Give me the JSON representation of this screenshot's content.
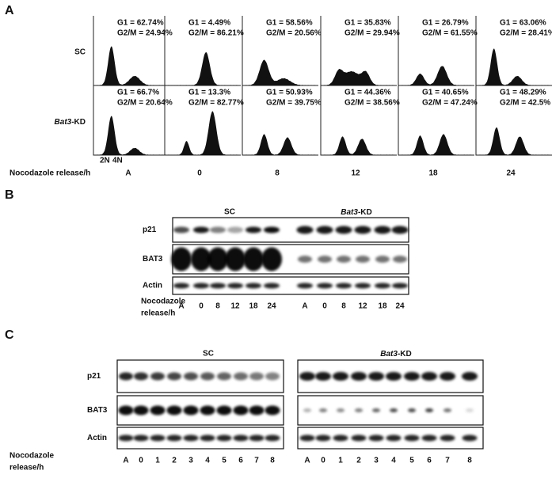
{
  "panel_a": {
    "label": "A",
    "rows": [
      {
        "name": "SC",
        "stats": [
          [
            "G1 = 62.74%",
            "G2/M = 24.94%"
          ],
          [
            "G1 = 4.49%",
            "G2/M = 86.21%"
          ],
          [
            "G1 = 58.56%",
            "G2/M = 20.56%"
          ],
          [
            "G1 = 35.83%",
            "G2/M = 29.94%"
          ],
          [
            "G1 = 26.79%",
            "G2/M = 61.55%"
          ],
          [
            "G1 = 63.06%",
            "G2/M = 28.41%"
          ]
        ]
      },
      {
        "name_italic": "Bat3",
        "name_suffix": "-KD",
        "stats": [
          [
            "G1 = 66.7%",
            "G2/M = 20.64%"
          ],
          [
            "G1 = 13.3%",
            "G2/M = 82.77%"
          ],
          [
            "G1 = 50.93%",
            "G2/M = 39.75%"
          ],
          [
            "G1 = 44.36%",
            "G2/M = 38.56%"
          ],
          [
            "G1 = 40.65%",
            "G2/M = 47.24%"
          ],
          [
            "G1 = 48.29%",
            "G2/M = 42.5%"
          ]
        ]
      }
    ],
    "peak_labels": [
      "2N",
      "4N"
    ],
    "x_label": "Nocodazole release/h",
    "timepoints": [
      "A",
      "0",
      "8",
      "12",
      "18",
      "24"
    ]
  },
  "panel_b": {
    "label": "B",
    "groups": [
      "SC",
      {
        "italic": "Bat3",
        "suffix": "-KD"
      }
    ],
    "blots": [
      "p21",
      "BAT3",
      "Actin"
    ],
    "x_label": [
      "Nocodazole",
      "release/h"
    ],
    "lanes": [
      [
        "A",
        "0",
        "8",
        "12",
        "18",
        "24"
      ],
      [
        "A",
        "0",
        "8",
        "12",
        "18",
        "24"
      ]
    ]
  },
  "panel_c": {
    "label": "C",
    "groups": [
      "SC",
      {
        "italic": "Bat3",
        "suffix": "-KD"
      }
    ],
    "blots": [
      "p21",
      "BAT3",
      "Actin"
    ],
    "x_label": [
      "Nocodazole",
      "release/h"
    ],
    "lanes": [
      [
        "A",
        "0",
        "1",
        "2",
        "3",
        "4",
        "5",
        "6",
        "7",
        "8"
      ],
      [
        "A",
        "0",
        "1",
        "2",
        "3",
        "4",
        "5",
        "6",
        "7",
        "8"
      ]
    ]
  }
}
